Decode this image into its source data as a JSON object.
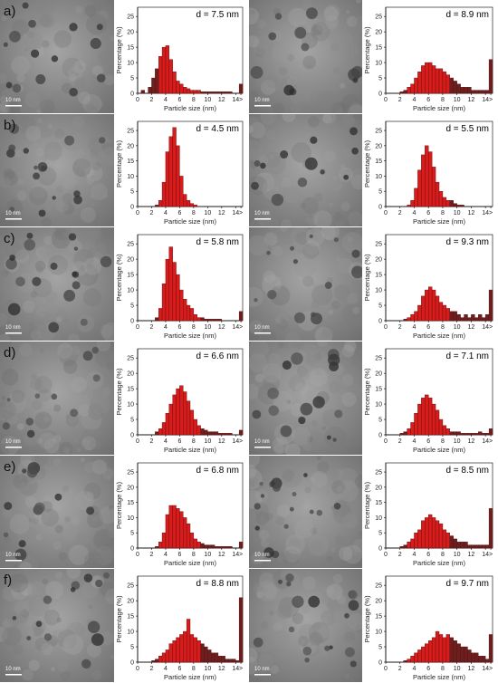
{
  "panels": [
    {
      "letter": "a)",
      "scale_label": "10 nm",
      "histograms": [
        {
          "d_label": "d = 7.5 nm",
          "values": [
            0,
            1,
            0,
            2,
            5,
            8,
            12,
            15,
            15.5,
            11,
            7,
            4,
            3,
            2,
            1.5,
            1,
            1,
            1,
            0.5,
            0.5,
            0.5,
            0.5,
            0.5,
            0.5,
            0.5,
            0.5,
            0.5,
            0,
            0,
            3
          ]
        },
        {
          "d_label": "d = 8.9 nm",
          "values": [
            0,
            0,
            0,
            0,
            0.5,
            1,
            2,
            3,
            5,
            7,
            9,
            10,
            10,
            9,
            8,
            8,
            7,
            6,
            5,
            4,
            3,
            2,
            2,
            2,
            1,
            1,
            1,
            1,
            1,
            11
          ]
        }
      ]
    },
    {
      "letter": "b)",
      "scale_label": "10 nm",
      "histograms": [
        {
          "d_label": "d = 4.5 nm",
          "values": [
            0,
            0,
            0,
            0,
            0,
            0.5,
            2,
            8,
            18,
            23,
            26,
            20,
            10,
            4,
            2,
            1,
            0.5,
            0,
            0,
            0,
            0,
            0,
            0,
            0,
            0,
            0,
            0,
            0,
            0,
            0
          ]
        },
        {
          "d_label": "d = 5.5 nm",
          "values": [
            0,
            0,
            0,
            0,
            0,
            0,
            0.5,
            2,
            6,
            12,
            17,
            20,
            18,
            13,
            8,
            5,
            3,
            2,
            2,
            1,
            0.5,
            0.5,
            0,
            0,
            0,
            0,
            0,
            0,
            0,
            0
          ]
        }
      ]
    },
    {
      "letter": "c)",
      "scale_label": "10 nm",
      "histograms": [
        {
          "d_label": "d = 5.8 nm",
          "values": [
            0,
            0,
            0,
            0,
            0,
            1,
            4,
            12,
            20,
            24,
            19,
            15,
            10,
            7,
            5,
            4,
            2,
            1,
            1,
            0.5,
            0.5,
            0.5,
            0.5,
            0.5,
            0,
            0,
            0,
            0,
            0,
            3
          ]
        },
        {
          "d_label": "d = 9.3 nm",
          "values": [
            0,
            0,
            0,
            0,
            0,
            0.5,
            1,
            2,
            3,
            5,
            8,
            10,
            11,
            10,
            8,
            6,
            5,
            4,
            3,
            3,
            2,
            1,
            2,
            1,
            2,
            1,
            2,
            1,
            2,
            10
          ]
        }
      ]
    },
    {
      "letter": "d)",
      "scale_label": "10 nm",
      "histograms": [
        {
          "d_label": "d = 6.6 nm",
          "values": [
            0,
            0,
            0,
            0,
            0,
            1,
            2,
            4,
            7,
            10,
            13,
            15,
            16,
            14,
            11,
            8,
            5,
            3,
            2,
            1.5,
            1,
            1,
            1,
            0.5,
            0.5,
            0.5,
            0.5,
            0,
            0,
            1.5
          ]
        },
        {
          "d_label": "d = 7.1 nm",
          "values": [
            0,
            0,
            0,
            0,
            0.5,
            1,
            2,
            4,
            7,
            10,
            12,
            13,
            12,
            10,
            8,
            5,
            3,
            2,
            1,
            1,
            1,
            0.5,
            0.5,
            0.5,
            0.5,
            0.5,
            1,
            0.5,
            0.5,
            2
          ]
        }
      ]
    },
    {
      "letter": "e)",
      "scale_label": "10 nm",
      "histograms": [
        {
          "d_label": "d = 6.8 nm",
          "values": [
            0,
            0,
            0,
            0,
            0,
            0.5,
            2,
            5,
            11,
            14,
            14,
            13,
            12,
            10,
            8,
            5,
            3,
            2,
            1.5,
            1,
            1,
            1,
            0.5,
            0.5,
            0.5,
            0.5,
            0.5,
            0,
            0,
            2
          ]
        },
        {
          "d_label": "d = 8.5 nm",
          "values": [
            0,
            0,
            0,
            0,
            0.5,
            1,
            2,
            3,
            5,
            6,
            9,
            10,
            11,
            10,
            9,
            8,
            6,
            5,
            4,
            3,
            2,
            2,
            2,
            1,
            1,
            1,
            1,
            1,
            1,
            13
          ]
        }
      ]
    },
    {
      "letter": "f)",
      "scale_label": "10 nm",
      "histograms": [
        {
          "d_label": "d = 8.8 nm",
          "values": [
            0,
            0,
            0,
            0,
            0.5,
            1,
            2,
            3,
            4,
            6,
            7,
            8,
            9,
            10,
            14,
            9,
            8,
            7,
            6,
            5,
            4,
            3,
            3,
            2,
            2,
            1,
            1,
            1,
            0.5,
            21
          ]
        },
        {
          "d_label": "d = 9.7 nm",
          "values": [
            0,
            0,
            0,
            0,
            0,
            0.5,
            1,
            2,
            3,
            4,
            5,
            6,
            7,
            8,
            10,
            9,
            8,
            9,
            8,
            7,
            6,
            5,
            5,
            4,
            3,
            3,
            2,
            2,
            1,
            9
          ]
        }
      ]
    }
  ],
  "chart_common": {
    "type": "bar",
    "ylabel": "Percentage (%)",
    "xlabel": "Particle size (nm)",
    "yticks": [
      "0",
      "5",
      "10",
      "15",
      "20",
      "25"
    ],
    "xticks": [
      "0",
      "2",
      "4",
      "6",
      "8",
      "10",
      "12",
      "14",
      ">"
    ],
    "ylim": [
      0,
      28
    ],
    "bin_width_nm": 0.5
  },
  "chart_data": [
    {
      "type": "bar",
      "panel": "a)",
      "series": [
        {
          "values": [
            0,
            1,
            0,
            2,
            5,
            8,
            12,
            15,
            15.5,
            11,
            7,
            4,
            3,
            2,
            1.5,
            1,
            1,
            1,
            0.5,
            0.5,
            0.5,
            0.5,
            0.5,
            0.5,
            0.5,
            0.5,
            0.5,
            0,
            0,
            3
          ]
        }
      ]
    },
    {
      "type": "bar",
      "panel": "a)",
      "series": [
        {
          "values": [
            0,
            0,
            0,
            0,
            0.5,
            1,
            2,
            3,
            5,
            7,
            9,
            10,
            10,
            9,
            8,
            8,
            7,
            6,
            5,
            4,
            3,
            2,
            2,
            2,
            1,
            1,
            1,
            1,
            1,
            11
          ]
        }
      ]
    },
    {
      "type": "bar",
      "panel": "b)",
      "series": [
        {
          "values": [
            0,
            0,
            0,
            0,
            0,
            0.5,
            2,
            8,
            18,
            23,
            26,
            20,
            10,
            4,
            2,
            1,
            0.5,
            0,
            0,
            0,
            0,
            0,
            0,
            0,
            0,
            0,
            0,
            0,
            0,
            0
          ]
        }
      ]
    },
    {
      "type": "bar",
      "panel": "b)",
      "series": [
        {
          "values": [
            0,
            0,
            0,
            0,
            0,
            0,
            0.5,
            2,
            6,
            12,
            17,
            20,
            18,
            13,
            8,
            5,
            3,
            2,
            2,
            1,
            0.5,
            0.5,
            0,
            0,
            0,
            0,
            0,
            0,
            0,
            0
          ]
        }
      ]
    },
    {
      "type": "bar",
      "panel": "c)",
      "series": [
        {
          "values": [
            0,
            0,
            0,
            0,
            0,
            1,
            4,
            12,
            20,
            24,
            19,
            15,
            10,
            7,
            5,
            4,
            2,
            1,
            1,
            0.5,
            0.5,
            0.5,
            0.5,
            0.5,
            0,
            0,
            0,
            0,
            0,
            3
          ]
        }
      ]
    },
    {
      "type": "bar",
      "panel": "c)",
      "series": [
        {
          "values": [
            0,
            0,
            0,
            0,
            0,
            0.5,
            1,
            2,
            3,
            5,
            8,
            10,
            11,
            10,
            8,
            6,
            5,
            4,
            3,
            3,
            2,
            1,
            2,
            1,
            2,
            1,
            2,
            1,
            2,
            10
          ]
        }
      ]
    },
    {
      "type": "bar",
      "panel": "d)",
      "series": [
        {
          "values": [
            0,
            0,
            0,
            0,
            0,
            1,
            2,
            4,
            7,
            10,
            13,
            15,
            16,
            14,
            11,
            8,
            5,
            3,
            2,
            1.5,
            1,
            1,
            1,
            0.5,
            0.5,
            0.5,
            0.5,
            0,
            0,
            1.5
          ]
        }
      ]
    },
    {
      "type": "bar",
      "panel": "d)",
      "series": [
        {
          "values": [
            0,
            0,
            0,
            0,
            0.5,
            1,
            2,
            4,
            7,
            10,
            12,
            13,
            12,
            10,
            8,
            5,
            3,
            2,
            1,
            1,
            1,
            0.5,
            0.5,
            0.5,
            0.5,
            0.5,
            1,
            0.5,
            0.5,
            2
          ]
        }
      ]
    },
    {
      "type": "bar",
      "panel": "e)",
      "series": [
        {
          "values": [
            0,
            0,
            0,
            0,
            0,
            0.5,
            2,
            5,
            11,
            14,
            14,
            13,
            12,
            10,
            8,
            5,
            3,
            2,
            1.5,
            1,
            1,
            1,
            0.5,
            0.5,
            0.5,
            0.5,
            0.5,
            0,
            0,
            2
          ]
        }
      ]
    },
    {
      "type": "bar",
      "panel": "e)",
      "series": [
        {
          "values": [
            0,
            0,
            0,
            0,
            0.5,
            1,
            2,
            3,
            5,
            6,
            9,
            10,
            11,
            10,
            9,
            8,
            6,
            5,
            4,
            3,
            2,
            2,
            2,
            1,
            1,
            1,
            1,
            1,
            1,
            13
          ]
        }
      ]
    },
    {
      "type": "bar",
      "panel": "f)",
      "series": [
        {
          "values": [
            0,
            0,
            0,
            0,
            0.5,
            1,
            2,
            3,
            4,
            6,
            7,
            8,
            9,
            10,
            14,
            9,
            8,
            7,
            6,
            5,
            4,
            3,
            3,
            2,
            2,
            1,
            1,
            1,
            0.5,
            21
          ]
        }
      ]
    },
    {
      "type": "bar",
      "panel": "f)",
      "series": [
        {
          "values": [
            0,
            0,
            0,
            0,
            0,
            0.5,
            1,
            2,
            3,
            4,
            5,
            6,
            7,
            8,
            10,
            9,
            8,
            9,
            8,
            7,
            6,
            5,
            5,
            4,
            3,
            3,
            2,
            2,
            1,
            9
          ]
        }
      ]
    }
  ],
  "colors": {
    "bar_main": "#d81b1b",
    "bar_tail": "#6b1f1f",
    "bar_stroke": "#5a0e0e",
    "tem_bg": "#8f8f8f",
    "particle": "#3c3c3c",
    "scale_bar": "#ffffff"
  }
}
